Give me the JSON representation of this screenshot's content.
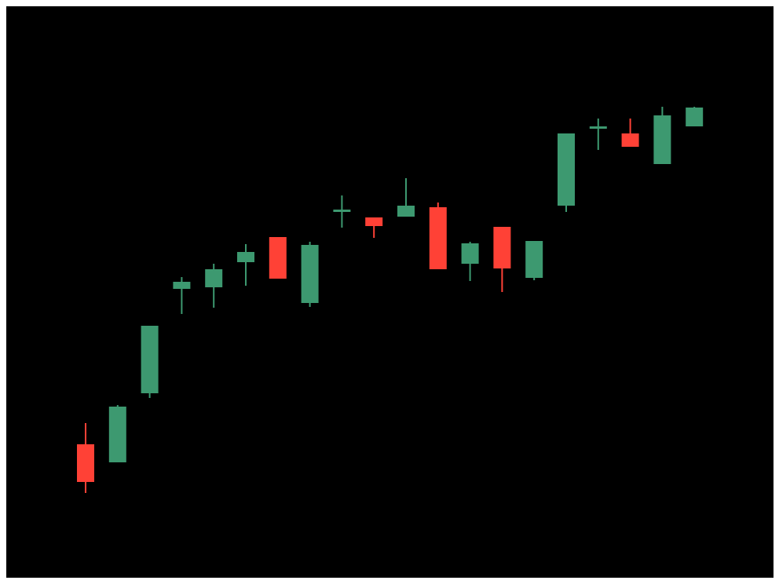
{
  "chart_data": {
    "type": "candlestick",
    "title": "",
    "xlabel": "",
    "ylabel": "",
    "grid": false,
    "legend": "none",
    "ylim": [
      0,
      728
    ],
    "colors": {
      "up": "#3d9970",
      "down": "#ff4136",
      "background": "#000000"
    },
    "candles": [
      {
        "open": 170,
        "high": 197,
        "low": 108,
        "close": 122
      },
      {
        "open": 147,
        "high": 220,
        "low": 147,
        "close": 218
      },
      {
        "open": 235,
        "high": 321,
        "low": 229,
        "close": 321
      },
      {
        "open": 368,
        "high": 383,
        "low": 336,
        "close": 377
      },
      {
        "open": 370,
        "high": 400,
        "low": 344,
        "close": 393
      },
      {
        "open": 402,
        "high": 425,
        "low": 372,
        "close": 415
      },
      {
        "open": 434,
        "high": 434,
        "low": 381,
        "close": 381
      },
      {
        "open": 350,
        "high": 428,
        "low": 345,
        "close": 424
      },
      {
        "open": 469,
        "high": 487,
        "low": 446,
        "close": 469
      },
      {
        "open": 459,
        "high": 459,
        "low": 433,
        "close": 448
      },
      {
        "open": 460,
        "high": 509,
        "low": 460,
        "close": 474
      },
      {
        "open": 472,
        "high": 478,
        "low": 393,
        "close": 393
      },
      {
        "open": 400,
        "high": 428,
        "low": 378,
        "close": 426
      },
      {
        "open": 447,
        "high": 447,
        "low": 364,
        "close": 394
      },
      {
        "open": 382,
        "high": 429,
        "low": 379,
        "close": 429
      },
      {
        "open": 474,
        "high": 566,
        "low": 466,
        "close": 566
      },
      {
        "open": 572,
        "high": 585,
        "low": 545,
        "close": 575
      },
      {
        "open": 566,
        "high": 585,
        "low": 549,
        "close": 549
      },
      {
        "open": 527,
        "high": 600,
        "low": 527,
        "close": 589
      },
      {
        "open": 575,
        "high": 600,
        "low": 575,
        "close": 599
      }
    ]
  }
}
